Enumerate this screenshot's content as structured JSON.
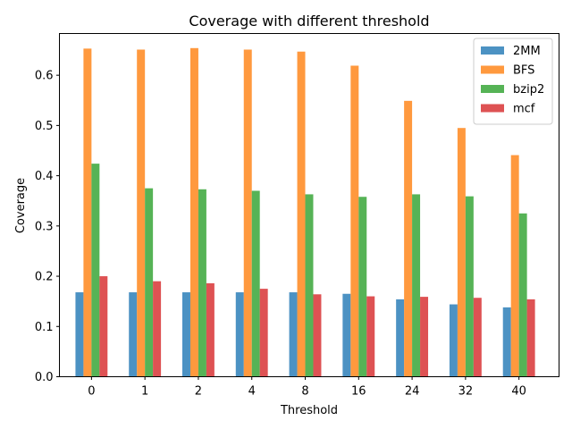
{
  "chart_data": {
    "type": "bar",
    "title": "Coverage with different threshold",
    "xlabel": "Threshold",
    "ylabel": "Coverage",
    "categories": [
      "0",
      "1",
      "2",
      "4",
      "8",
      "16",
      "24",
      "32",
      "40"
    ],
    "ylim": [
      0,
      0.683
    ],
    "yticks": [
      "0.0",
      "0.1",
      "0.2",
      "0.3",
      "0.4",
      "0.5",
      "0.6"
    ],
    "grid": false,
    "legend_position": "top-right",
    "series": [
      {
        "name": "2MM",
        "color": "#1f77b4",
        "values": [
          0.168,
          0.168,
          0.168,
          0.168,
          0.168,
          0.165,
          0.154,
          0.144,
          0.138
        ]
      },
      {
        "name": "BFS",
        "color": "#ff7f0e",
        "values": [
          0.653,
          0.651,
          0.654,
          0.651,
          0.647,
          0.619,
          0.549,
          0.495,
          0.441
        ]
      },
      {
        "name": "bzip2",
        "color": "#2ca02c",
        "values": [
          0.424,
          0.375,
          0.373,
          0.37,
          0.363,
          0.358,
          0.363,
          0.359,
          0.325
        ]
      },
      {
        "name": "mcf",
        "color": "#d62728",
        "values": [
          0.2,
          0.19,
          0.186,
          0.175,
          0.164,
          0.16,
          0.159,
          0.157,
          0.154
        ]
      }
    ]
  }
}
